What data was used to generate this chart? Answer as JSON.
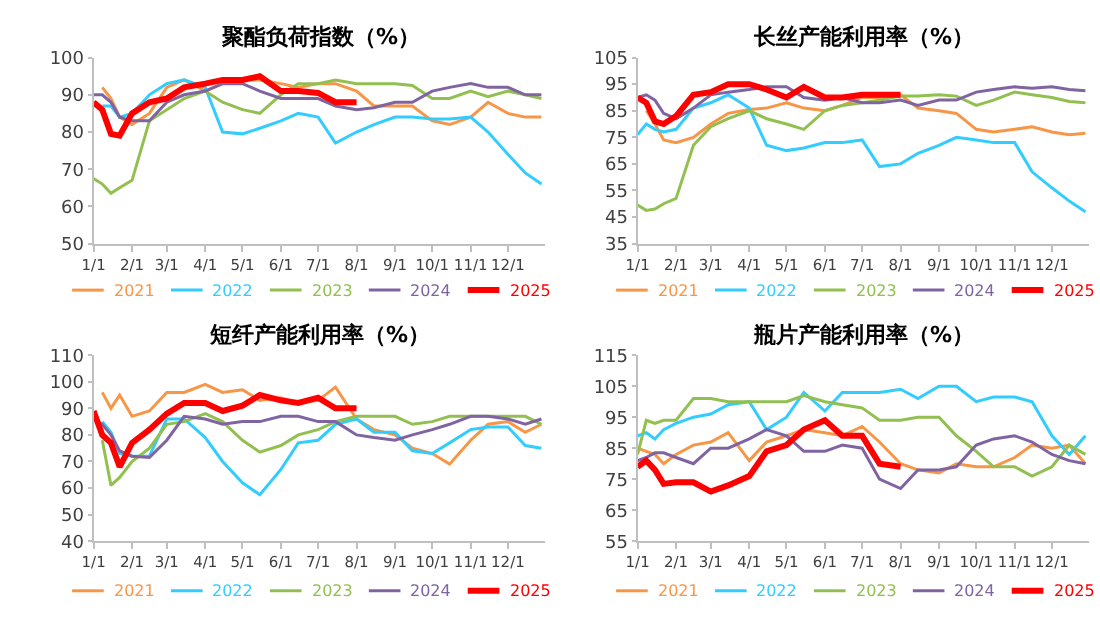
{
  "chart_data": [
    {
      "type": "line",
      "title": "聚酯负荷指数（%）",
      "x": [
        "--01-01",
        "--01-08",
        "--01-15",
        "--01-22",
        "--02-01",
        "--02-15",
        "--03-01",
        "--03-15",
        "--04-01",
        "--04-15",
        "--05-01",
        "--05-15",
        "--06-01",
        "--06-15",
        "--07-01",
        "--07-15",
        "--08-01",
        "--08-15",
        "--09-01",
        "--09-15",
        "--10-01",
        "--10-15",
        "--11-01",
        "--11-15",
        "--12-01",
        "--12-15",
        "--12-28"
      ],
      "xlim": [
        "--01-01",
        "--12-31"
      ],
      "xticks": [
        {
          "value": "--01-01",
          "label": "1/1"
        },
        {
          "value": "--02-01",
          "label": "2/1"
        },
        {
          "value": "--03-01",
          "label": "3/1"
        },
        {
          "value": "--04-01",
          "label": "4/1"
        },
        {
          "value": "--05-01",
          "label": "5/1"
        },
        {
          "value": "--06-01",
          "label": "6/1"
        },
        {
          "value": "--07-01",
          "label": "7/1"
        },
        {
          "value": "--08-01",
          "label": "8/1"
        },
        {
          "value": "--09-01",
          "label": "9/1"
        },
        {
          "value": "--10-01",
          "label": "10/1"
        },
        {
          "value": "--11-01",
          "label": "11/1"
        },
        {
          "value": "--12-01",
          "label": "12/1"
        }
      ],
      "ylim": [
        50,
        100
      ],
      "yticks": [
        50,
        60,
        70,
        80,
        90,
        100
      ],
      "legend": "bottom",
      "series": [
        {
          "name": "2021",
          "color": "#f79646",
          "values": [
            null,
            92,
            89,
            84,
            82,
            85,
            92,
            94,
            91,
            93,
            94,
            94,
            93,
            92,
            93,
            93,
            91,
            87,
            87,
            87,
            83,
            82,
            84,
            88,
            85,
            84,
            84
          ]
        },
        {
          "name": "2022",
          "color": "#33ccff",
          "values": [
            null,
            87,
            87,
            84,
            85,
            90,
            93,
            94,
            92,
            80,
            79.5,
            81,
            83,
            85,
            84,
            77,
            80,
            82,
            84,
            84,
            83.5,
            83.5,
            84,
            80,
            74,
            69,
            66
          ]
        },
        {
          "name": "2023",
          "color": "#92c050",
          "values": [
            67.5,
            66,
            63.5,
            65,
            67,
            83,
            86,
            89,
            91,
            88,
            86,
            85,
            90,
            93,
            93,
            94,
            93,
            93,
            93,
            92.5,
            89,
            89,
            91,
            89.5,
            91,
            90,
            89
          ]
        },
        {
          "name": "2024",
          "color": "#8064a2",
          "values": [
            90,
            90,
            88,
            84,
            83,
            83,
            88,
            90,
            91,
            93,
            93,
            91,
            89,
            89,
            89,
            87,
            86,
            86.5,
            88,
            88,
            91,
            92,
            93,
            92,
            92,
            90,
            90
          ]
        },
        {
          "name": "2025",
          "color": "#ff0000",
          "values": [
            88,
            86,
            79.5,
            79,
            85,
            88,
            89,
            92,
            93,
            94,
            94,
            95,
            91,
            91,
            90.5,
            88,
            88,
            null,
            null,
            null,
            null,
            null,
            null,
            null,
            null,
            null,
            null
          ]
        }
      ]
    },
    {
      "type": "line",
      "title": "长丝产能利用率（%）",
      "x": [
        "--01-01",
        "--01-08",
        "--01-15",
        "--01-22",
        "--02-01",
        "--02-15",
        "--03-01",
        "--03-15",
        "--04-01",
        "--04-15",
        "--05-01",
        "--05-15",
        "--06-01",
        "--06-15",
        "--07-01",
        "--07-15",
        "--08-01",
        "--08-15",
        "--09-01",
        "--09-15",
        "--10-01",
        "--10-15",
        "--11-01",
        "--11-15",
        "--12-01",
        "--12-15",
        "--12-28"
      ],
      "xlim": [
        "--01-01",
        "--12-31"
      ],
      "xticks": [
        {
          "value": "--01-01",
          "label": "1/1"
        },
        {
          "value": "--02-01",
          "label": "2/1"
        },
        {
          "value": "--03-01",
          "label": "3/1"
        },
        {
          "value": "--04-01",
          "label": "4/1"
        },
        {
          "value": "--05-01",
          "label": "5/1"
        },
        {
          "value": "--06-01",
          "label": "6/1"
        },
        {
          "value": "--07-01",
          "label": "7/1"
        },
        {
          "value": "--08-01",
          "label": "8/1"
        },
        {
          "value": "--09-01",
          "label": "9/1"
        },
        {
          "value": "--10-01",
          "label": "10/1"
        },
        {
          "value": "--11-01",
          "label": "11/1"
        },
        {
          "value": "--12-01",
          "label": "12/1"
        }
      ],
      "ylim": [
        35,
        105
      ],
      "yticks": [
        35,
        45,
        55,
        65,
        75,
        85,
        95,
        105
      ],
      "legend": "bottom",
      "series": [
        {
          "name": "2021",
          "color": "#f79646",
          "values": [
            null,
            85,
            80,
            74,
            73,
            75,
            80,
            84,
            85.5,
            86,
            88,
            86,
            85,
            87,
            90,
            90,
            91,
            86,
            85,
            84,
            78,
            77,
            78,
            79,
            77,
            76,
            76.5
          ]
        },
        {
          "name": "2022",
          "color": "#33ccff",
          "values": [
            76,
            80,
            78,
            77,
            78,
            86,
            88,
            91,
            86,
            72,
            70,
            71,
            73,
            73,
            74,
            64,
            65,
            69,
            72,
            75,
            74,
            73,
            73,
            62,
            56,
            51,
            47
          ]
        },
        {
          "name": "2023",
          "color": "#92c050",
          "values": [
            49.5,
            47.5,
            48,
            50,
            52,
            72,
            79,
            82,
            85,
            82,
            80,
            78,
            85,
            87,
            88,
            89,
            90.5,
            90.5,
            91,
            90.5,
            87,
            89,
            92,
            91,
            90,
            88.5,
            88
          ]
        },
        {
          "name": "2024",
          "color": "#8064a2",
          "values": [
            90,
            91,
            89,
            84,
            82,
            86,
            91,
            92,
            93,
            94,
            94,
            90,
            89,
            90,
            88,
            88,
            89,
            87,
            89,
            89,
            92,
            93,
            94,
            93.5,
            94,
            93,
            92.5
          ]
        },
        {
          "name": "2025",
          "color": "#ff0000",
          "values": [
            90,
            88,
            81,
            80,
            83,
            91,
            92,
            95,
            95,
            93,
            90,
            94,
            90,
            90,
            91,
            91,
            91,
            null,
            null,
            null,
            null,
            null,
            null,
            null,
            null,
            null,
            null
          ]
        }
      ]
    },
    {
      "type": "line",
      "title": "短纤产能利用率（%）",
      "x": [
        "--01-01",
        "--01-08",
        "--01-15",
        "--01-22",
        "--02-01",
        "--02-15",
        "--03-01",
        "--03-15",
        "--04-01",
        "--04-15",
        "--05-01",
        "--05-15",
        "--06-01",
        "--06-15",
        "--07-01",
        "--07-15",
        "--08-01",
        "--08-15",
        "--09-01",
        "--09-15",
        "--10-01",
        "--10-15",
        "--11-01",
        "--11-15",
        "--12-01",
        "--12-15",
        "--12-28"
      ],
      "xlim": [
        "--01-01",
        "--12-31"
      ],
      "xticks": [
        {
          "value": "--01-01",
          "label": "1/1"
        },
        {
          "value": "--02-01",
          "label": "2/1"
        },
        {
          "value": "--03-01",
          "label": "3/1"
        },
        {
          "value": "--04-01",
          "label": "4/1"
        },
        {
          "value": "--05-01",
          "label": "5/1"
        },
        {
          "value": "--06-01",
          "label": "6/1"
        },
        {
          "value": "--07-01",
          "label": "7/1"
        },
        {
          "value": "--08-01",
          "label": "8/1"
        },
        {
          "value": "--09-01",
          "label": "9/1"
        },
        {
          "value": "--10-01",
          "label": "10/1"
        },
        {
          "value": "--11-01",
          "label": "11/1"
        },
        {
          "value": "--12-01",
          "label": "12/1"
        }
      ],
      "ylim": [
        40,
        110
      ],
      "yticks": [
        40,
        50,
        60,
        70,
        80,
        90,
        100,
        110
      ],
      "legend": "bottom",
      "series": [
        {
          "name": "2021",
          "color": "#f79646",
          "values": [
            null,
            96,
            90,
            95,
            87,
            89,
            96,
            96,
            99,
            96,
            97,
            93,
            94,
            92,
            93,
            98,
            86,
            82,
            80,
            75,
            73,
            69,
            78,
            84,
            85,
            81,
            84
          ]
        },
        {
          "name": "2022",
          "color": "#33ccff",
          "values": [
            null,
            85,
            81,
            73,
            72,
            72,
            86,
            86,
            79,
            70,
            62,
            57.5,
            67,
            77,
            78,
            84,
            86,
            81,
            81,
            74,
            73,
            77,
            82,
            83,
            83,
            76,
            75
          ]
        },
        {
          "name": "2023",
          "color": "#92c050",
          "values": [
            null,
            78,
            61,
            64,
            70,
            75,
            84,
            85,
            88,
            85,
            78,
            73.5,
            76,
            80,
            82,
            85,
            87,
            87,
            87,
            84,
            85,
            87,
            87,
            87,
            87,
            87,
            84
          ]
        },
        {
          "name": "2024",
          "color": "#8064a2",
          "values": [
            86,
            84,
            80,
            74,
            72,
            71.5,
            78,
            87,
            86,
            84,
            85,
            85,
            87,
            87,
            85,
            85,
            80,
            79,
            78,
            80,
            82,
            84,
            87,
            87,
            86,
            84,
            86
          ]
        },
        {
          "name": "2025",
          "color": "#ff0000",
          "values": [
            89,
            80,
            77,
            68,
            77,
            82,
            88,
            92,
            92,
            89,
            91,
            95,
            93,
            92,
            94,
            90,
            90,
            null,
            null,
            null,
            null,
            null,
            null,
            null,
            null,
            null,
            null
          ]
        }
      ]
    },
    {
      "type": "line",
      "title": "瓶片产能利用率（%）",
      "x": [
        "--01-01",
        "--01-08",
        "--01-15",
        "--01-22",
        "--02-01",
        "--02-15",
        "--03-01",
        "--03-15",
        "--04-01",
        "--04-15",
        "--05-01",
        "--05-15",
        "--06-01",
        "--06-15",
        "--07-01",
        "--07-15",
        "--08-01",
        "--08-15",
        "--09-01",
        "--09-15",
        "--10-01",
        "--10-15",
        "--11-01",
        "--11-15",
        "--12-01",
        "--12-15",
        "--12-28"
      ],
      "xlim": [
        "--01-01",
        "--12-31"
      ],
      "xticks": [
        {
          "value": "--01-01",
          "label": "1/1"
        },
        {
          "value": "--02-01",
          "label": "2/1"
        },
        {
          "value": "--03-01",
          "label": "3/1"
        },
        {
          "value": "--04-01",
          "label": "4/1"
        },
        {
          "value": "--05-01",
          "label": "5/1"
        },
        {
          "value": "--06-01",
          "label": "6/1"
        },
        {
          "value": "--07-01",
          "label": "7/1"
        },
        {
          "value": "--08-01",
          "label": "8/1"
        },
        {
          "value": "--09-01",
          "label": "9/1"
        },
        {
          "value": "--10-01",
          "label": "10/1"
        },
        {
          "value": "--11-01",
          "label": "11/1"
        },
        {
          "value": "--12-01",
          "label": "12/1"
        }
      ],
      "ylim": [
        55,
        115
      ],
      "yticks": [
        55,
        65,
        75,
        85,
        95,
        105,
        115
      ],
      "legend": "bottom",
      "series": [
        {
          "name": "2021",
          "color": "#f79646",
          "values": [
            85,
            84,
            83,
            80,
            83,
            86,
            87,
            90,
            81,
            87,
            89,
            91,
            90,
            89,
            92,
            87,
            80,
            78,
            77,
            80,
            79,
            79,
            82,
            86,
            85,
            86,
            80
          ]
        },
        {
          "name": "2022",
          "color": "#33ccff",
          "values": [
            89,
            90,
            88,
            91,
            93,
            95,
            96,
            99,
            100,
            91,
            95,
            103,
            97,
            103,
            103,
            103,
            104,
            101,
            105,
            105,
            100,
            101.5,
            101.5,
            100,
            89,
            83,
            89
          ]
        },
        {
          "name": "2023",
          "color": "#92c050",
          "values": [
            83,
            94,
            93,
            94,
            94,
            101,
            101,
            100,
            100,
            100,
            100,
            102,
            100,
            99,
            98,
            94,
            94,
            95,
            95,
            89,
            84,
            79,
            79,
            76,
            79,
            86,
            83
          ]
        },
        {
          "name": "2024",
          "color": "#8064a2",
          "values": [
            81,
            82,
            83.5,
            83.5,
            82,
            80,
            85,
            85,
            88,
            91,
            89,
            84,
            84,
            86,
            85,
            75,
            72,
            78,
            78,
            79,
            86,
            88,
            89,
            87,
            83,
            81,
            80
          ]
        },
        {
          "name": "2025",
          "color": "#ff0000",
          "values": [
            79,
            81,
            78,
            73.5,
            74,
            74,
            71,
            73,
            76,
            84,
            86,
            91,
            94,
            89,
            89,
            80,
            79,
            null,
            null,
            null,
            null,
            null,
            null,
            null,
            null,
            null,
            null
          ]
        }
      ]
    }
  ]
}
